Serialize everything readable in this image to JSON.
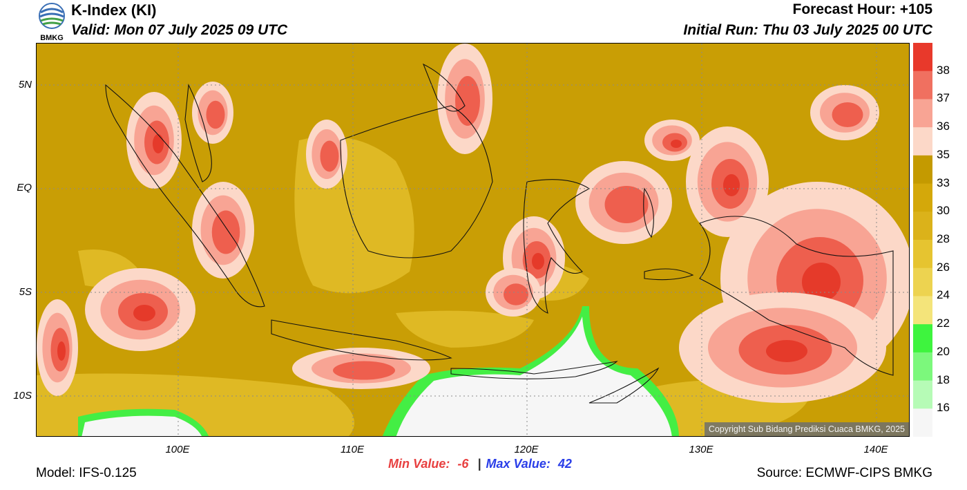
{
  "header": {
    "logo_text": "BMKG",
    "title": "K-Index (KI)",
    "valid": "Valid: Mon 07 July 2025 09 UTC",
    "forecast_hour": "Forecast Hour: +105",
    "initial_run": "Initial Run: Thu 03 July 2025 00 UTC"
  },
  "axes": {
    "lat_labels": [
      "5N",
      "EQ",
      "5S",
      "10S"
    ],
    "lon_labels": [
      "100E",
      "110E",
      "120E",
      "130E",
      "140E"
    ]
  },
  "colorbar": {
    "labels": [
      "38",
      "37",
      "36",
      "35",
      "33",
      "30",
      "28",
      "26",
      "24",
      "22",
      "20",
      "18",
      "16"
    ],
    "colors": [
      "#e8392b",
      "#f07060",
      "#f8a494",
      "#fcd8c8",
      "#c49a00",
      "#d4a80a",
      "#dbb21a",
      "#e6c430",
      "#edd350",
      "#f4e47a",
      "#3ef43e",
      "#7cf87c",
      "#b6fbb6",
      "#f6f6f6"
    ]
  },
  "map": {
    "copyright": "Copyright Sub Bidang Prediksi Cuaca BMKG, 2025",
    "colors": {
      "base": "#c99e05",
      "light": "#e3bd2a",
      "pale": "#f6f6f6",
      "pink": "#fcd8c8",
      "salmon": "#f8a494",
      "red": "#ee5f4e",
      "deep": "#e53a2a",
      "green": "#44ee44",
      "coast": "#111111"
    }
  },
  "stats": {
    "min_label": "Min Value:",
    "min_value": "-6",
    "separator": "|",
    "max_label": "Max Value:",
    "max_value": "42"
  },
  "footer": {
    "model": "Model: IFS-0.125",
    "source": "Source: ECMWF-CIPS BMKG"
  }
}
